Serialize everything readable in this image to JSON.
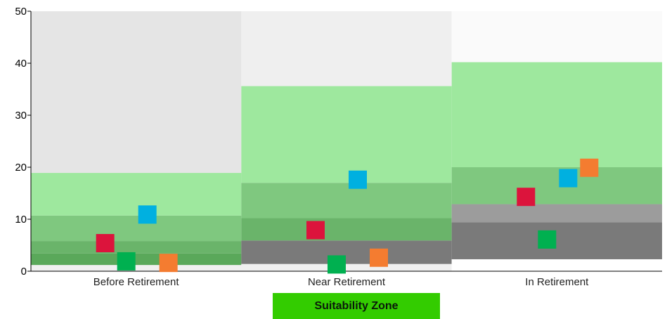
{
  "chart_data": {
    "type": "scatter",
    "categories": [
      "Before Retirement",
      "Near Retirement",
      "In Retirement"
    ],
    "ylim": [
      0,
      50
    ],
    "yticks": [
      0,
      10,
      20,
      30,
      40,
      50
    ],
    "grid": false,
    "legend": {
      "label": "Suitability Zone",
      "color": "#33cc00",
      "placement": "bottom-center"
    },
    "column_backgrounds": [
      "#e5e5e5",
      "#efefef",
      "#fafafa"
    ],
    "bands": [
      [
        {
          "from": 0,
          "to": 1.2,
          "color": "#f0f0f0"
        },
        {
          "from": 1.2,
          "to": 3.4,
          "color": "#5aa85a"
        },
        {
          "from": 3.4,
          "to": 5.8,
          "color": "#6ab46a"
        },
        {
          "from": 5.8,
          "to": 10.7,
          "color": "#7fc87f"
        },
        {
          "from": 10.7,
          "to": 18.9,
          "color": "#9ee89e"
        }
      ],
      [
        {
          "from": 0,
          "to": 1.4,
          "color": "#f0f0f0"
        },
        {
          "from": 1.4,
          "to": 5.9,
          "color": "#7a7a7a"
        },
        {
          "from": 5.9,
          "to": 10.2,
          "color": "#6ab46a"
        },
        {
          "from": 10.2,
          "to": 17.0,
          "color": "#7fc87f"
        },
        {
          "from": 17.0,
          "to": 35.6,
          "color": "#9ee89e"
        }
      ],
      [
        {
          "from": 0,
          "to": 2.3,
          "color": "#ffffff"
        },
        {
          "from": 2.3,
          "to": 9.4,
          "color": "#7a7a7a"
        },
        {
          "from": 9.4,
          "to": 12.9,
          "color": "#9c9c9c"
        },
        {
          "from": 12.9,
          "to": 20.0,
          "color": "#7fc87f"
        },
        {
          "from": 20.0,
          "to": 40.2,
          "color": "#9ee89e"
        }
      ]
    ],
    "series": [
      {
        "color": "#dc143c",
        "values": [
          5.4,
          7.9,
          14.3
        ]
      },
      {
        "color": "#00b050",
        "values": [
          1.9,
          1.3,
          6.1
        ]
      },
      {
        "color": "#00b0e0",
        "values": [
          10.9,
          17.6,
          17.9
        ]
      },
      {
        "color": "#f47c30",
        "values": [
          1.6,
          2.6,
          19.9
        ]
      }
    ]
  }
}
